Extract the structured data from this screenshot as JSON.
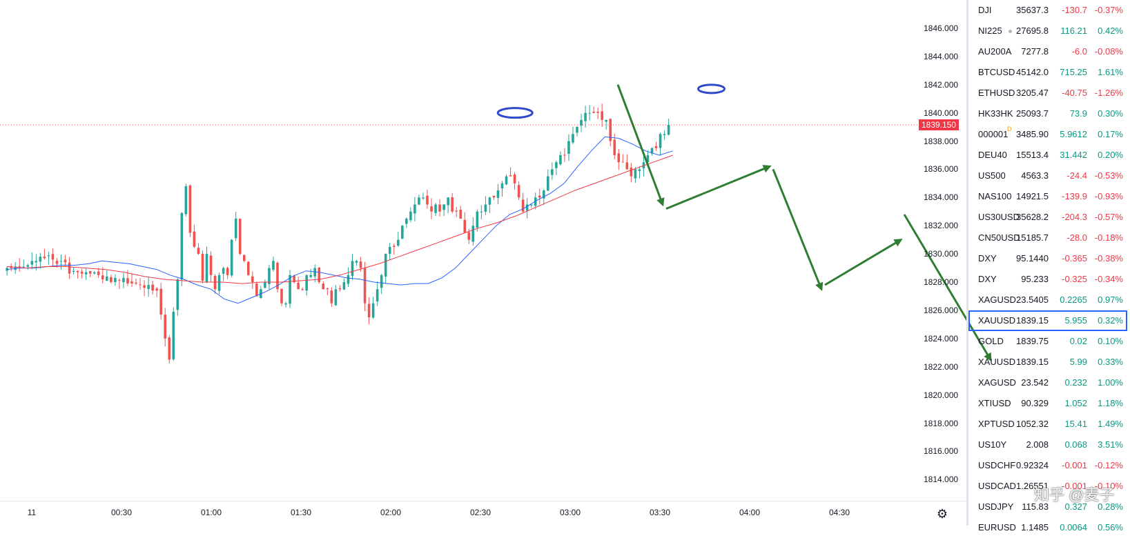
{
  "chart": {
    "current_price_label": "1839.150",
    "current_price": 1839.15,
    "y_ticks": [
      "1846.000",
      "1844.000",
      "1842.000",
      "1840.000",
      "1838.000",
      "1836.000",
      "1834.000",
      "1832.000",
      "1830.000",
      "1828.000",
      "1826.000",
      "1824.000",
      "1822.000",
      "1820.000",
      "1818.000",
      "1816.000",
      "1814.000"
    ],
    "x_ticks": [
      "11",
      "00:30",
      "01:00",
      "01:30",
      "02:00",
      "02:30",
      "03:00",
      "03:30",
      "04:00",
      "04:30"
    ],
    "colors": {
      "up": "#26a69a",
      "down": "#ef5350",
      "ma_fast": "#2962ff",
      "ma_slow": "#f23645",
      "annotation_arrow": "#2e7d32",
      "annotation_ellipse": "#2e49c9"
    }
  },
  "chart_data": {
    "type": "candlestick",
    "x_unit": "minutes after 00:00",
    "closes": [
      1829.0,
      1829.0,
      1829.1,
      1829.1,
      1829.1,
      1829.2,
      1829.5,
      1829.5,
      1829.8,
      1829.7,
      1829.9,
      1829.6,
      1829.3,
      1829.5,
      1829.4,
      1828.6,
      1828.8,
      1828.7,
      1828.6,
      1828.7,
      1828.6,
      1828.7,
      1828.5,
      1828.2,
      1828.4,
      1828.0,
      1828.3,
      1828.1,
      1828.3,
      1827.9,
      1827.9,
      1827.9,
      1827.8,
      1827.6,
      1827.8,
      1827.4,
      1827.4,
      1825.7,
      1824.0,
      1822.5,
      1825.9,
      1828.2,
      1832.9,
      1834.8,
      1831.5,
      1830.5,
      1830.0,
      1828.1,
      1830.0,
      1828.5,
      1827.5,
      1828.5,
      1829.0,
      1828.5,
      1831.0,
      1832.5,
      1830.0,
      1829.5,
      1828.5,
      1828.0,
      1827.0,
      1827.5,
      1828.0,
      1829.0,
      1829.5,
      1827.5,
      1826.5,
      1826.5,
      1828.5,
      1828.0,
      1827.5,
      1827.5,
      1828.5,
      1828.5,
      1829.0,
      1828.0,
      1827.5,
      1827.5,
      1826.5,
      1827.5,
      1827.5,
      1828.0,
      1828.5,
      1829.5,
      1829.5,
      1829.0,
      1826.5,
      1825.5,
      1826.5,
      1827.5,
      1828.5,
      1830.0,
      1830.5,
      1830.5,
      1831.0,
      1832.0,
      1832.5,
      1833.0,
      1833.5,
      1834.0,
      1834.0,
      1833.5,
      1833.0,
      1833.5,
      1833.0,
      1833.5,
      1834.0,
      1833.0,
      1833.0,
      1832.5,
      1831.5,
      1831.0,
      1832.0,
      1833.0,
      1833.0,
      1833.5,
      1834.0,
      1834.0,
      1834.5,
      1835.0,
      1835.5,
      1835.5,
      1835.0,
      1834.0,
      1833.0,
      1833.5,
      1833.5,
      1834.0,
      1834.0,
      1834.5,
      1835.5,
      1836.0,
      1836.5,
      1837.0,
      1837.0,
      1838.0,
      1838.5,
      1839.0,
      1839.5,
      1840.0,
      1840.0,
      1840.0,
      1840.0,
      1839.5,
      1839.5,
      1838.0,
      1837.0,
      1836.5,
      1836.5,
      1836.0,
      1835.5,
      1836.0,
      1836.0,
      1836.5,
      1837.0,
      1837.5,
      1837.5,
      1838.5,
      1838.5,
      1839.15
    ],
    "ma_fast": [
      1828.9,
      1829.0,
      1829.0,
      1829.1,
      1829.2,
      1829.2,
      1829.3,
      1829.5,
      1829.4,
      1829.3,
      1829.1,
      1828.9,
      1828.5,
      1828.2,
      1827.8,
      1827.5,
      1826.8,
      1826.5,
      1826.9,
      1827.3,
      1827.8,
      1828.4,
      1828.8,
      1828.7,
      1828.5,
      1828.3,
      1828.2,
      1828.0,
      1827.9,
      1827.8,
      1827.9,
      1827.9,
      1828.3,
      1829.0,
      1830.0,
      1831.0,
      1832.0,
      1832.8,
      1833.2,
      1833.8,
      1834.3,
      1835.0,
      1836.2,
      1837.3,
      1838.3,
      1838.2,
      1837.8,
      1837.3,
      1837.0,
      1837.3
    ],
    "ma_slow": [
      1829.1,
      1829.0,
      1829.1,
      1829.1,
      1829.0,
      1828.9,
      1828.7,
      1828.4,
      1828.2,
      1828.1,
      1828.0,
      1828.0,
      1827.9,
      1828.0,
      1828.0,
      1828.1,
      1828.2,
      1828.5,
      1828.9,
      1829.3,
      1829.8,
      1830.3,
      1830.8,
      1831.3,
      1831.8,
      1832.2,
      1832.7,
      1833.3,
      1833.9,
      1834.5,
      1835.0,
      1835.5,
      1836.0,
      1836.5,
      1837.0
    ],
    "forecast_path": [
      [
        1839.6,
        1842.0
      ],
      [
        1833.5,
        1833.2
      ],
      [
        1836.2,
        1836.0
      ],
      [
        1827.5,
        1827.8
      ],
      [
        1831.0,
        1832.8
      ],
      [
        1822.5,
        1821.5
      ]
    ],
    "ylim": [
      1812.5,
      1848.0
    ]
  },
  "watchlist": [
    {
      "symbol": "DJI",
      "last": "35637.3",
      "change": "-130.7",
      "pct": "-0.37%",
      "dir": "down",
      "mark": ""
    },
    {
      "symbol": "NI225",
      "last": "27695.8",
      "change": "116.21",
      "pct": "0.42%",
      "dir": "up",
      "mark": "dot"
    },
    {
      "symbol": "AU200A",
      "last": "7277.8",
      "change": "-6.0",
      "pct": "-0.08%",
      "dir": "down",
      "mark": ""
    },
    {
      "symbol": "BTCUSD",
      "last": "45142.0",
      "change": "715.25",
      "pct": "1.61%",
      "dir": "up",
      "mark": ""
    },
    {
      "symbol": "ETHUSD",
      "last": "3205.47",
      "change": "-40.75",
      "pct": "-1.26%",
      "dir": "down",
      "mark": ""
    },
    {
      "symbol": "HK33HK",
      "last": "25093.7",
      "change": "73.9",
      "pct": "0.30%",
      "dir": "up",
      "mark": ""
    },
    {
      "symbol": "000001",
      "last": "3485.90",
      "change": "5.9612",
      "pct": "0.17%",
      "dir": "up",
      "mark": "badge"
    },
    {
      "symbol": "DEU40",
      "last": "15513.4",
      "change": "31.442",
      "pct": "0.20%",
      "dir": "up",
      "mark": ""
    },
    {
      "symbol": "US500",
      "last": "4563.3",
      "change": "-24.4",
      "pct": "-0.53%",
      "dir": "down",
      "mark": ""
    },
    {
      "symbol": "NAS100",
      "last": "14921.5",
      "change": "-139.9",
      "pct": "-0.93%",
      "dir": "down",
      "mark": ""
    },
    {
      "symbol": "US30USD",
      "last": "35628.2",
      "change": "-204.3",
      "pct": "-0.57%",
      "dir": "down",
      "mark": ""
    },
    {
      "symbol": "CN50USD",
      "last": "15185.7",
      "change": "-28.0",
      "pct": "-0.18%",
      "dir": "down",
      "mark": ""
    },
    {
      "symbol": "DXY",
      "last": "95.1440",
      "change": "-0.365",
      "pct": "-0.38%",
      "dir": "down",
      "mark": ""
    },
    {
      "symbol": "DXY",
      "last": "95.233",
      "change": "-0.325",
      "pct": "-0.34%",
      "dir": "down",
      "mark": ""
    },
    {
      "symbol": "XAGUSD",
      "last": "23.5405",
      "change": "0.2265",
      "pct": "0.97%",
      "dir": "up",
      "mark": ""
    },
    {
      "symbol": "XAUUSD",
      "last": "1839.15",
      "change": "5.955",
      "pct": "0.32%",
      "dir": "up",
      "mark": "selected"
    },
    {
      "symbol": "GOLD",
      "last": "1839.75",
      "change": "0.02",
      "pct": "0.10%",
      "dir": "up",
      "mark": ""
    },
    {
      "symbol": "XAUUSD",
      "last": "1839.15",
      "change": "5.99",
      "pct": "0.33%",
      "dir": "up",
      "mark": ""
    },
    {
      "symbol": "XAGUSD",
      "last": "23.542",
      "change": "0.232",
      "pct": "1.00%",
      "dir": "up",
      "mark": ""
    },
    {
      "symbol": "XTIUSD",
      "last": "90.329",
      "change": "1.052",
      "pct": "1.18%",
      "dir": "up",
      "mark": ""
    },
    {
      "symbol": "XPTUSD",
      "last": "1052.32",
      "change": "15.41",
      "pct": "1.49%",
      "dir": "up",
      "mark": ""
    },
    {
      "symbol": "US10Y",
      "last": "2.008",
      "change": "0.068",
      "pct": "3.51%",
      "dir": "up",
      "mark": ""
    },
    {
      "symbol": "USDCHF",
      "last": "0.92324",
      "change": "-0.001",
      "pct": "-0.12%",
      "dir": "down",
      "mark": ""
    },
    {
      "symbol": "USDCAD",
      "last": "1.26551",
      "change": "-0.001",
      "pct": "-0.10%",
      "dir": "down",
      "mark": ""
    },
    {
      "symbol": "USDJPY",
      "last": "115.83",
      "change": "0.327",
      "pct": "0.28%",
      "dir": "up",
      "mark": ""
    },
    {
      "symbol": "EURUSD",
      "last": "1.1485",
      "change": "0.0064",
      "pct": "0.56%",
      "dir": "up",
      "mark": ""
    }
  ],
  "watermark": "知乎 @麦子"
}
